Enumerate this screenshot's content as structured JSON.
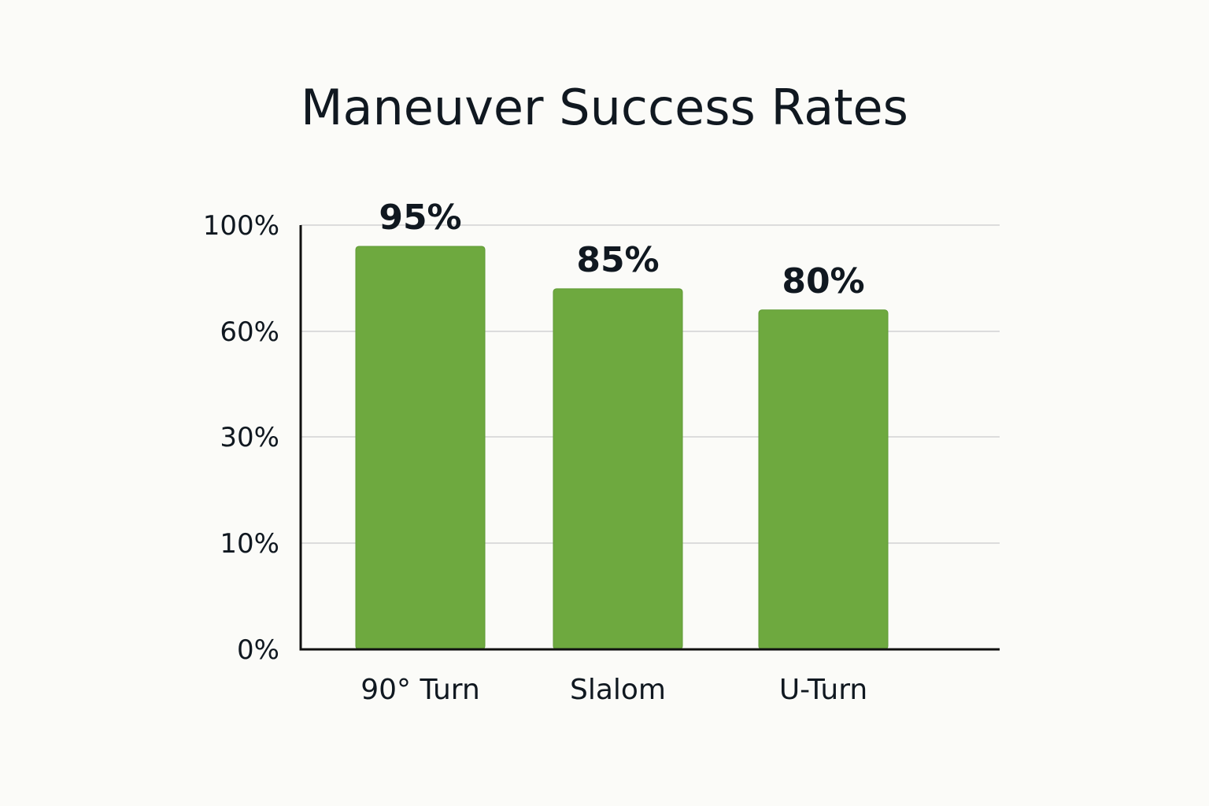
{
  "chart_data": {
    "type": "bar",
    "title": "Maneuver Success Rates",
    "categories": [
      "90° Turn",
      "Slalom",
      "U-Turn"
    ],
    "values": [
      95,
      85,
      80
    ],
    "value_labels": [
      "95%",
      "85%",
      "80%"
    ],
    "y_ticks": [
      {
        "label": "0%"
      },
      {
        "label": "10%"
      },
      {
        "label": "30%"
      },
      {
        "label": "60%"
      },
      {
        "label": "100%"
      }
    ],
    "xlabel": "",
    "ylabel": "",
    "grid": true,
    "legend": "none",
    "colors": {
      "bar": "#6ea93f",
      "bar_edge": "#5f9a34",
      "text": "#101820",
      "grid": "#dcdcdc",
      "axis": "#101010",
      "background": "#fbfbf8"
    }
  }
}
